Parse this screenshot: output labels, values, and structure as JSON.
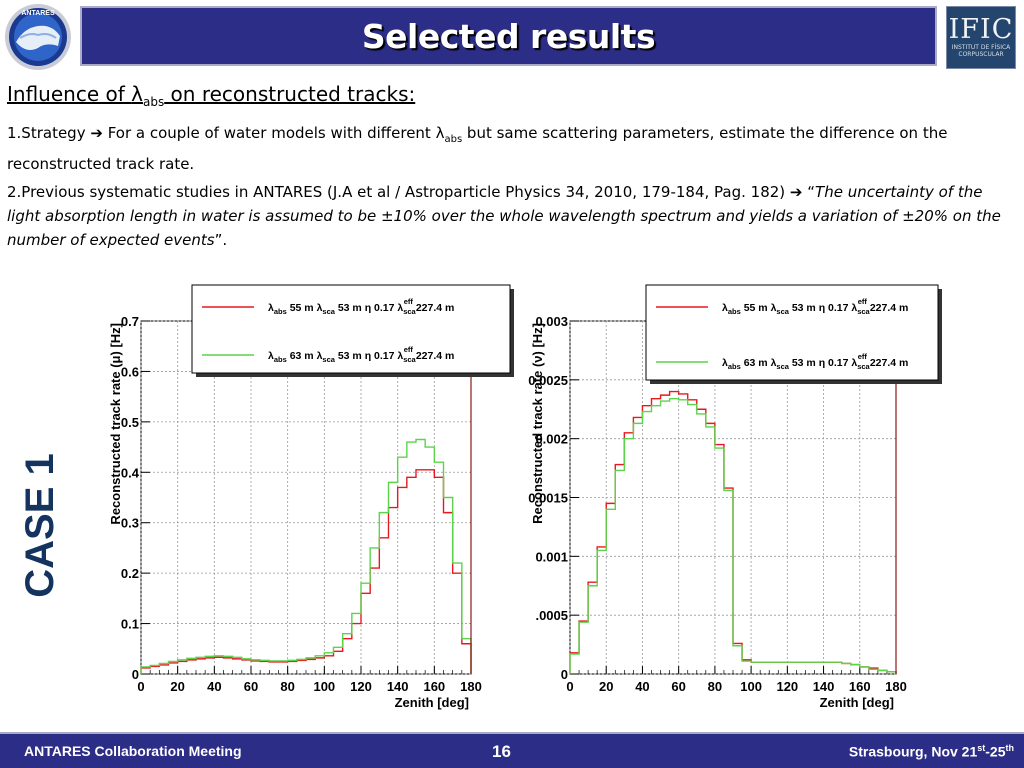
{
  "header": {
    "title": "Selected results",
    "logo_left_text": "ANTARES",
    "logo_right_text": "IFIC",
    "logo_right_sub": "INSTITUT DE FÍSICA CORPUSCULAR"
  },
  "content": {
    "heading_pre": "Influence of ",
    "heading_symbol": "λ",
    "heading_sub": "abs",
    "heading_post": " on reconstructed tracks:",
    "p1_a": "1.Strategy ",
    "p1_arrow": "➔",
    "p1_b": " For a couple of water models with different ",
    "p1_symbol": "λ",
    "p1_sub": "abs",
    "p1_c": " but same scattering parameters, estimate the difference on the reconstructed track rate.",
    "p2_a": "2.Previous systematic studies in ANTARES (J.A et al / Astroparticle Physics 34, 2010, 179-184, Pag. 182) ",
    "p2_arrow": "➔",
    "p2_b": " “",
    "p2_italic": "The uncertainty of the light absorption length in water is assumed to be ±10% over the whole wavelength spectrum and yields a variation of ±20% on the number of expected events",
    "p2_c": "”.",
    "case_label": "CASE 1"
  },
  "footer": {
    "left": "ANTARES Collaboration Meeting",
    "page": "16",
    "right_pre": "Strasbourg, Nov 21",
    "right_sup1": "st",
    "right_mid": "-25",
    "right_sup2": "th"
  },
  "chart_data": [
    {
      "type": "line",
      "xlabel": "Zenith [deg]",
      "ylabel": "Reconstructed track rate (μ) [Hz]",
      "xlim": [
        0,
        180
      ],
      "ylim": [
        0,
        0.7
      ],
      "xticks": [
        "0",
        "20",
        "40",
        "60",
        "80",
        "100",
        "120",
        "140",
        "160",
        "180"
      ],
      "yticks": [
        "0",
        "0.1",
        "0.2",
        "0.3",
        "0.4",
        "0.5",
        "0.6",
        "0.7"
      ],
      "grid": true,
      "legend_position": "top",
      "x_edges": [
        0,
        5,
        10,
        15,
        20,
        25,
        30,
        35,
        40,
        45,
        50,
        55,
        60,
        65,
        70,
        75,
        80,
        85,
        90,
        95,
        100,
        105,
        110,
        115,
        120,
        125,
        130,
        135,
        140,
        145,
        150,
        155,
        160,
        165,
        170,
        175,
        180
      ],
      "series": [
        {
          "color": "#e8191e",
          "legend": [
            "55 m",
            "53 m",
            "0.17",
            "227.4 m"
          ],
          "values": [
            0.012,
            0.015,
            0.018,
            0.022,
            0.025,
            0.028,
            0.03,
            0.032,
            0.033,
            0.032,
            0.03,
            0.028,
            0.026,
            0.025,
            0.024,
            0.024,
            0.025,
            0.027,
            0.029,
            0.032,
            0.036,
            0.045,
            0.07,
            0.1,
            0.16,
            0.21,
            0.27,
            0.33,
            0.37,
            0.39,
            0.405,
            0.405,
            0.39,
            0.32,
            0.2,
            0.06
          ]
        },
        {
          "color": "#5bd44a",
          "legend": [
            "63 m",
            "53 m",
            "0.17",
            "227.4 m"
          ],
          "values": [
            0.014,
            0.017,
            0.021,
            0.025,
            0.028,
            0.031,
            0.033,
            0.035,
            0.036,
            0.035,
            0.033,
            0.03,
            0.028,
            0.027,
            0.026,
            0.026,
            0.027,
            0.029,
            0.032,
            0.036,
            0.042,
            0.053,
            0.08,
            0.12,
            0.18,
            0.25,
            0.32,
            0.38,
            0.43,
            0.46,
            0.465,
            0.45,
            0.42,
            0.35,
            0.22,
            0.07
          ]
        }
      ]
    },
    {
      "type": "line",
      "xlabel": "Zenith [deg]",
      "ylabel": "Reconstructed track rate (ν) [Hz]",
      "xlim": [
        0,
        180
      ],
      "ylim": [
        0,
        0.003
      ],
      "xticks": [
        "0",
        "20",
        "40",
        "60",
        "80",
        "100",
        "120",
        "140",
        "160",
        "180"
      ],
      "yticks": [
        "0",
        ".0005",
        "0.001",
        "0.0015",
        "0.002",
        "0.0025",
        "0.003"
      ],
      "grid": true,
      "legend_position": "top",
      "x_edges": [
        0,
        5,
        10,
        15,
        20,
        25,
        30,
        35,
        40,
        45,
        50,
        55,
        60,
        65,
        70,
        75,
        80,
        85,
        90,
        95,
        100,
        105,
        110,
        115,
        120,
        125,
        130,
        135,
        140,
        145,
        150,
        155,
        160,
        165,
        170,
        175,
        180
      ],
      "series": [
        {
          "color": "#e8191e",
          "legend": [
            "55 m",
            "53 m",
            "0.17",
            "227.4 m"
          ],
          "values": [
            0.00018,
            0.00045,
            0.00078,
            0.00108,
            0.00145,
            0.00178,
            0.00205,
            0.00218,
            0.00228,
            0.00234,
            0.00237,
            0.0024,
            0.00238,
            0.00233,
            0.00225,
            0.00213,
            0.00195,
            0.00158,
            0.00026,
            0.00012,
            0.0001,
            0.0001,
            0.0001,
            0.0001,
            0.0001,
            0.0001,
            0.0001,
            0.0001,
            0.0001,
            0.0001,
            9e-05,
            8e-05,
            6e-05,
            5e-05,
            3e-05,
            2e-05
          ]
        },
        {
          "color": "#5bd44a",
          "legend": [
            "63 m",
            "53 m",
            "0.17",
            "227.4 m"
          ],
          "values": [
            0.00017,
            0.00044,
            0.00075,
            0.00105,
            0.0014,
            0.00173,
            0.002,
            0.00213,
            0.00223,
            0.00228,
            0.00232,
            0.00234,
            0.00233,
            0.00229,
            0.00221,
            0.0021,
            0.00192,
            0.00156,
            0.00024,
            0.00011,
            0.0001,
            0.0001,
            0.0001,
            0.0001,
            0.0001,
            0.0001,
            0.0001,
            0.0001,
            0.0001,
            0.0001,
            9e-05,
            8e-05,
            6e-05,
            4e-05,
            3e-05,
            2e-05
          ]
        }
      ]
    }
  ]
}
